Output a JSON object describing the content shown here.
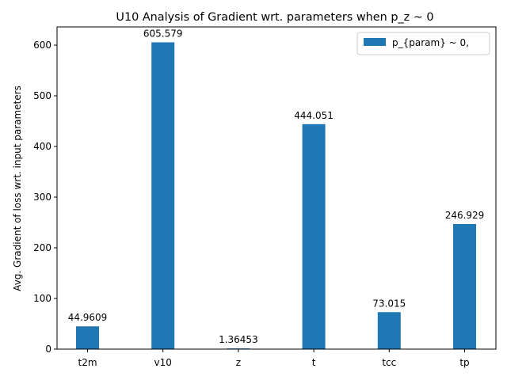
{
  "chart_data": {
    "type": "bar",
    "title": "U10 Analysis of Gradient wrt. parameters when p_z ~ 0",
    "xlabel": "",
    "ylabel": "Avg. Gradient of loss wrt. input parameters",
    "categories": [
      "t2m",
      "v10",
      "z",
      "t",
      "tcc",
      "tp"
    ],
    "series": [
      {
        "name": "p_{param} ~ 0,",
        "values": [
          44.9609,
          605.579,
          1.36453,
          444.051,
          73.015,
          246.929
        ],
        "value_labels": [
          "44.9609",
          "605.579",
          "1.36453",
          "444.051",
          "73.015",
          "246.929"
        ],
        "color": "#1f77b4"
      }
    ],
    "ylim": [
      0,
      636
    ],
    "yticks": [
      0,
      100,
      200,
      300,
      400,
      500,
      600
    ],
    "grid": false,
    "legend_position": "top-right"
  }
}
